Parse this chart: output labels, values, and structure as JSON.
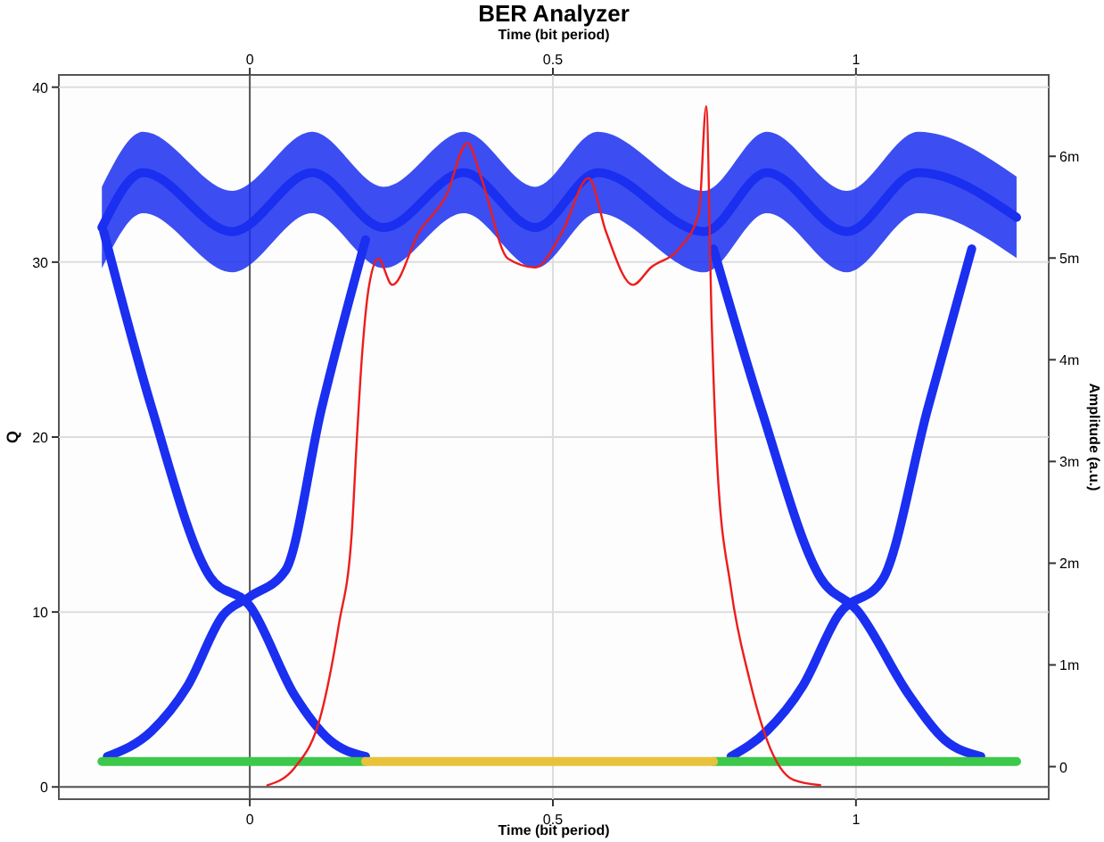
{
  "chart_data": {
    "type": "line",
    "title": "BER Analyzer",
    "xlabel": "Time (bit period)",
    "x2label": "Time (bit period)",
    "ylabel": "Q",
    "y2label": "Amplitude (a.u.)",
    "xlim": [
      -0.315,
      1.318
    ],
    "xticks": [
      0,
      0.5,
      1
    ],
    "x2lim": [
      -0.315,
      1.318
    ],
    "x2ticks": [
      0,
      0.5,
      1
    ],
    "ylim": [
      -0.7,
      40.7
    ],
    "yticks": [
      0,
      10,
      20,
      30,
      40
    ],
    "y2lim": [
      -0.32,
      6.8
    ],
    "y2ticks": [
      0,
      {
        "value": 1,
        "label": "1m"
      },
      {
        "value": 2,
        "label": "2m"
      },
      {
        "value": 3,
        "label": "3m"
      },
      {
        "value": 4,
        "label": "4m"
      },
      {
        "value": 5,
        "label": "5m"
      },
      {
        "value": 6,
        "label": "6m"
      }
    ],
    "grid": true,
    "marker": "none",
    "line_style": "solid",
    "series": [
      {
        "color": "#1a2ff0",
        "axis": "y2",
        "x": [
          -0.244,
          -0.176,
          -0.029,
          0.103,
          0.221,
          0.353,
          0.471,
          0.574,
          0.75,
          0.853,
          0.985,
          1.103,
          1.265
        ],
        "values": [
          5.3,
          5.84,
          5.26,
          5.84,
          5.3,
          5.84,
          5.3,
          5.84,
          5.26,
          5.84,
          5.26,
          5.84,
          5.4
        ],
        "lower": [
          4.9,
          5.44,
          4.86,
          5.44,
          4.9,
          5.44,
          4.9,
          5.44,
          4.86,
          5.44,
          4.86,
          5.44,
          5.0
        ],
        "upper": [
          5.7,
          6.24,
          5.66,
          6.24,
          5.7,
          6.24,
          5.7,
          6.24,
          5.66,
          6.24,
          5.66,
          6.24,
          5.8
        ]
      },
      {
        "color": "#1a2ff0",
        "axis": "y2",
        "x": [
          -0.241,
          -0.162,
          -0.065,
          0,
          0.074,
          0.132,
          0.191
        ],
        "values": [
          5.26,
          3.53,
          1.86,
          1.58,
          0.7,
          0.26,
          0.1
        ]
      },
      {
        "color": "#1a2ff0",
        "axis": "y2",
        "x": [
          -0.235,
          -0.162,
          -0.103,
          -0.044,
          0,
          0.059,
          0.118,
          0.191
        ],
        "values": [
          0.1,
          0.35,
          0.79,
          1.49,
          1.67,
          1.93,
          3.51,
          5.18
        ]
      },
      {
        "color": "#1a2ff0",
        "axis": "y2",
        "x": [
          0.765,
          0.844,
          0.941,
          1.003,
          1.088,
          1.147,
          1.206
        ],
        "values": [
          5.09,
          3.51,
          1.86,
          1.53,
          0.7,
          0.26,
          0.1
        ]
      },
      {
        "color": "#1a2ff0",
        "axis": "y2",
        "x": [
          0.794,
          0.853,
          0.912,
          0.971,
          1.044,
          1.118,
          1.191
        ],
        "values": [
          0.1,
          0.35,
          0.79,
          1.49,
          1.84,
          3.51,
          5.09
        ]
      },
      {
        "color": "#3cc84a",
        "axis": "y2",
        "x": [
          -0.244,
          0.191,
          0.478,
          0.765,
          1.265
        ],
        "values": [
          0.05,
          0.05,
          null,
          0.05,
          0.05
        ]
      },
      {
        "color": "#e8c23a",
        "axis": "y2",
        "x": [
          0.191,
          0.478,
          0.765
        ],
        "values": [
          0.05,
          0.05,
          0.05
        ]
      },
      {
        "color": "#ee1c1c",
        "x": [
          0.029,
          0.074,
          0.118,
          0.147,
          0.168,
          0.176,
          0.185,
          0.197,
          0.212,
          0.235,
          0.279,
          0.324,
          0.359,
          0.382,
          0.426,
          0.471,
          0.515,
          0.559,
          0.588,
          0.632,
          0.662,
          0.706,
          0.741,
          0.753,
          0.762,
          0.771,
          0.794,
          0.824,
          0.853,
          0.897,
          0.941
        ],
        "values": [
          0.1,
          1.1,
          4.2,
          9.3,
          14.4,
          19.5,
          24.6,
          28.7,
          30.2,
          28.7,
          31.7,
          33.8,
          36.8,
          34.8,
          30.2,
          29.7,
          31.7,
          34.8,
          31.7,
          28.7,
          29.7,
          30.7,
          32.8,
          38.9,
          26.6,
          18.5,
          11.3,
          6.2,
          2.7,
          0.4,
          0.1
        ]
      }
    ]
  }
}
